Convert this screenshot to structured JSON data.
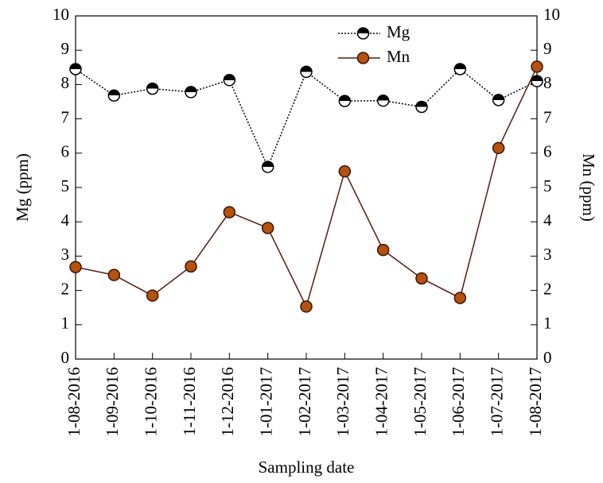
{
  "chart_data": {
    "type": "line",
    "xlabel": "Sampling date",
    "ylabel": "Mg (ppm)",
    "y2label": "Mn (ppm)",
    "categories": [
      "1-08-2016",
      "1-09-2016",
      "1-10-2016",
      "1-11-2016",
      "1-12-2016",
      "1-01-2017",
      "1-02-2017",
      "1-03-2017",
      "1-04-2017",
      "1-05-2017",
      "1-06-2017",
      "1-07-2017",
      "1-08-2017"
    ],
    "series": [
      {
        "name": "Mg",
        "color": "#000000",
        "values": [
          8.45,
          7.68,
          7.88,
          7.78,
          8.13,
          5.6,
          8.37,
          7.52,
          7.53,
          7.35,
          8.45,
          7.55,
          8.1
        ]
      },
      {
        "name": "Mn",
        "color": "#b5520f",
        "axis": "y2",
        "values": [
          2.68,
          2.45,
          1.85,
          2.7,
          4.28,
          3.82,
          1.53,
          5.47,
          3.18,
          2.35,
          1.78,
          6.15,
          8.52
        ]
      }
    ],
    "ylim": [
      0,
      10
    ],
    "yticks": [
      0,
      1,
      2,
      3,
      4,
      5,
      6,
      7,
      8,
      9,
      10
    ],
    "y2lim": [
      0,
      10
    ],
    "y2ticks": [
      0,
      1,
      2,
      3,
      4,
      5,
      6,
      7,
      8,
      9,
      10
    ],
    "legend": "top"
  }
}
